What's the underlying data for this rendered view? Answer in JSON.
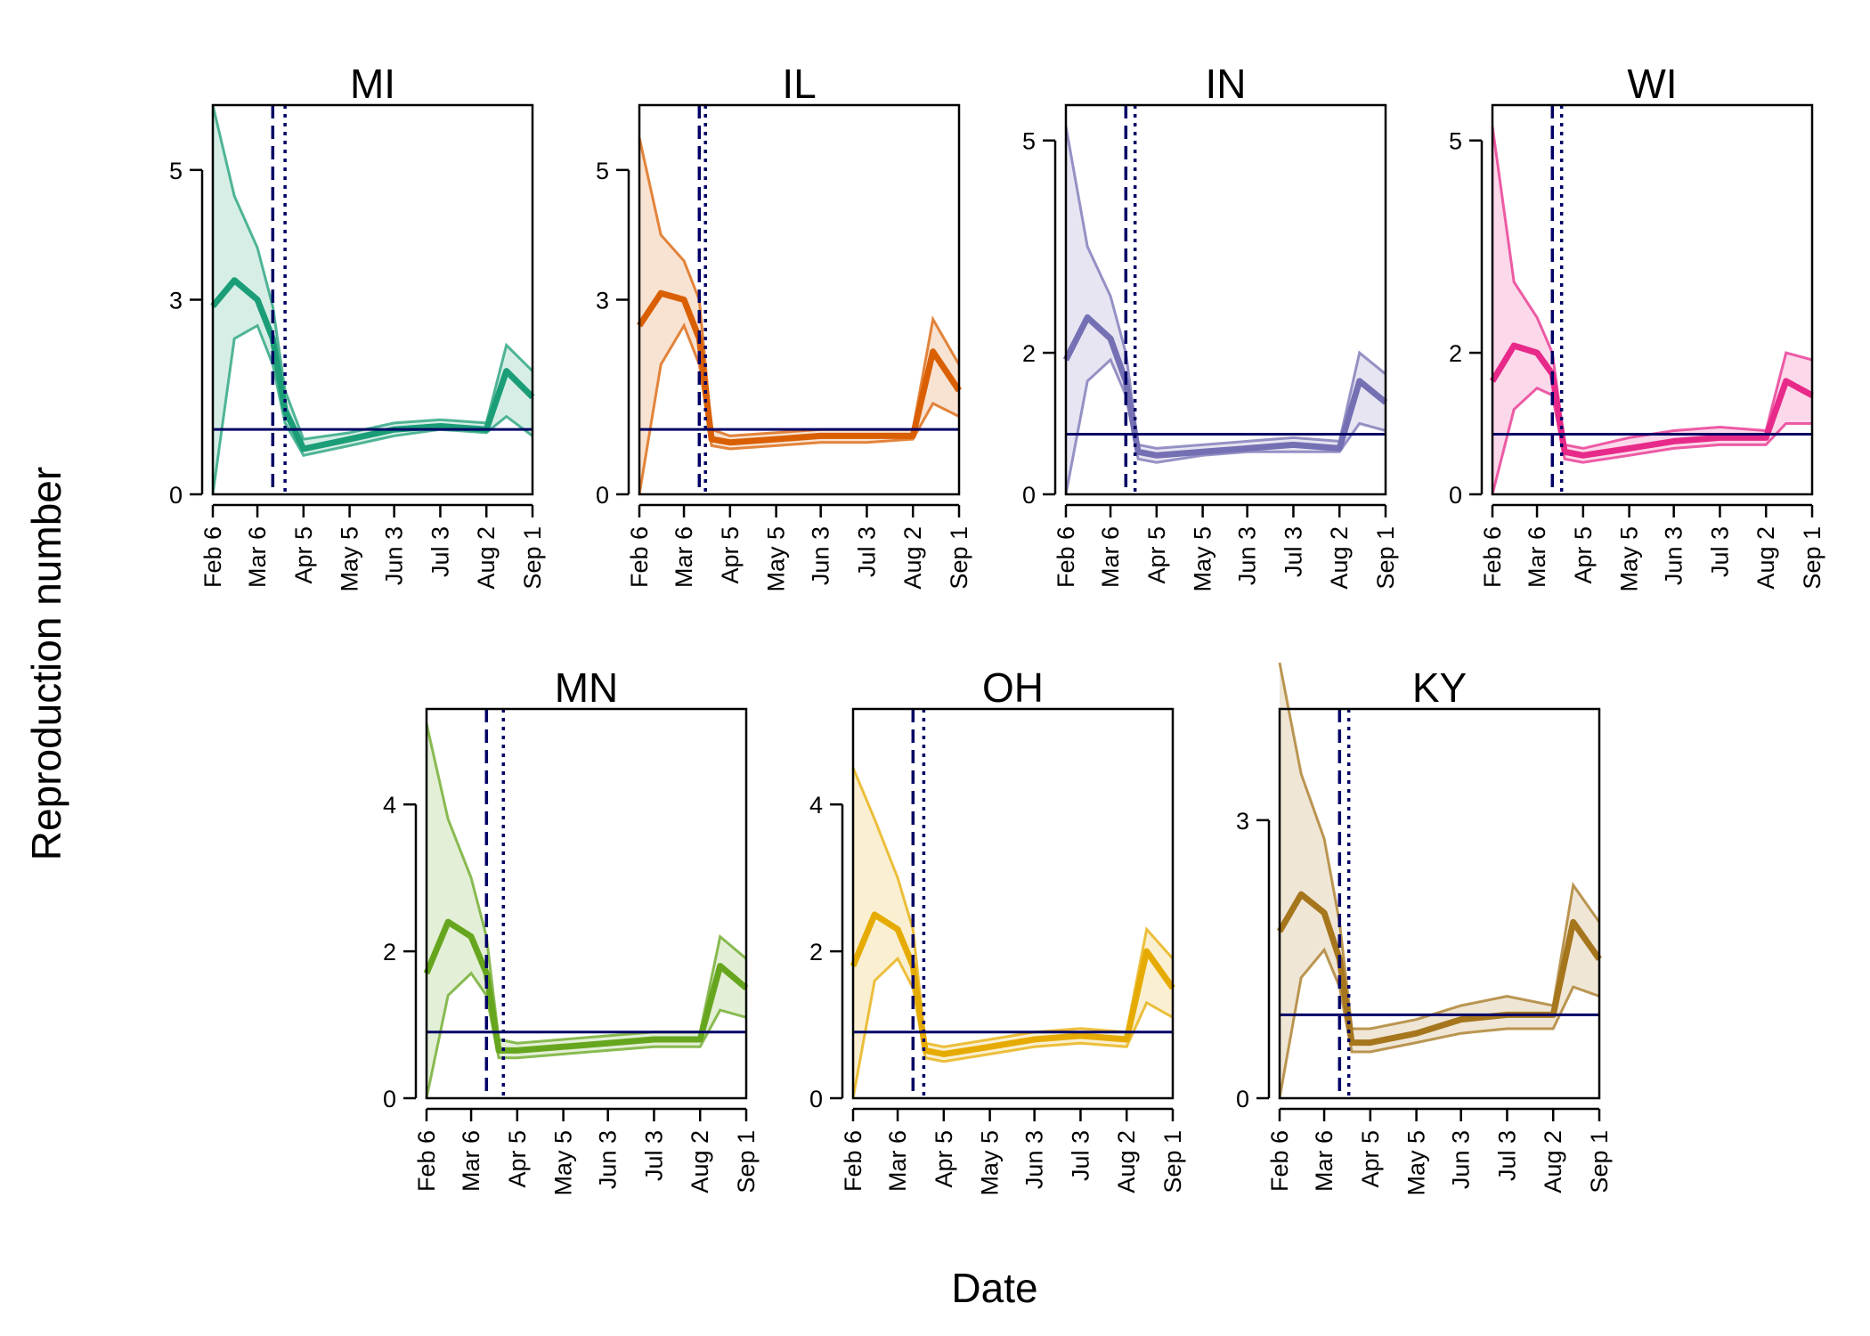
{
  "figure": {
    "ylabel": "Reproduction number",
    "xlabel": "Date"
  },
  "chart_data": [
    {
      "type": "line",
      "title": "MI",
      "color": "#1b9e77",
      "x_ticks": [
        "Feb 6",
        "Mar 6",
        "Apr 5",
        "May 5",
        "Jun 3",
        "Jul 3",
        "Aug 2",
        "Sep 1"
      ],
      "y_ticks": [
        0,
        3,
        5
      ],
      "ylim": [
        0,
        6
      ],
      "threshold": 1,
      "vline_dashed": "Mar 16",
      "vline_dotted": "Mar 24",
      "x": [
        "Feb 6",
        "Feb 20",
        "Mar 6",
        "Mar 16",
        "Mar 24",
        "Apr 5",
        "May 5",
        "Jun 3",
        "Jul 3",
        "Aug 2",
        "Aug 15",
        "Sep 1"
      ],
      "series": [
        {
          "role": "mean",
          "values": [
            2.9,
            3.3,
            3.0,
            2.4,
            1.3,
            0.7,
            0.85,
            1.0,
            1.05,
            1.0,
            1.9,
            1.5
          ]
        },
        {
          "role": "lower",
          "values": [
            0.0,
            2.4,
            2.6,
            2.0,
            1.1,
            0.6,
            0.75,
            0.9,
            1.0,
            0.95,
            1.2,
            0.9
          ]
        },
        {
          "role": "upper",
          "values": [
            6.0,
            4.6,
            3.8,
            2.9,
            1.6,
            0.85,
            0.95,
            1.1,
            1.15,
            1.1,
            2.3,
            1.9
          ]
        }
      ]
    },
    {
      "type": "line",
      "title": "IL",
      "color": "#d95f02",
      "x_ticks": [
        "Feb 6",
        "Mar 6",
        "Apr 5",
        "May 5",
        "Jun 3",
        "Jul 3",
        "Aug 2",
        "Sep 1"
      ],
      "y_ticks": [
        0,
        3,
        5
      ],
      "ylim": [
        0,
        6
      ],
      "threshold": 1,
      "vline_dashed": "Mar 16",
      "vline_dotted": "Mar 20",
      "x": [
        "Feb 6",
        "Feb 20",
        "Mar 6",
        "Mar 16",
        "Mar 24",
        "Apr 5",
        "May 5",
        "Jun 3",
        "Jul 3",
        "Aug 2",
        "Aug 15",
        "Sep 1"
      ],
      "series": [
        {
          "role": "mean",
          "values": [
            2.6,
            3.1,
            3.0,
            2.4,
            0.85,
            0.8,
            0.85,
            0.9,
            0.9,
            0.9,
            2.2,
            1.6
          ]
        },
        {
          "role": "lower",
          "values": [
            0.0,
            2.0,
            2.6,
            2.0,
            0.75,
            0.7,
            0.75,
            0.8,
            0.8,
            0.85,
            1.4,
            1.2
          ]
        },
        {
          "role": "upper",
          "values": [
            5.5,
            4.0,
            3.6,
            3.0,
            1.0,
            0.9,
            0.95,
            1.0,
            1.0,
            1.0,
            2.7,
            2.0
          ]
        }
      ]
    },
    {
      "type": "line",
      "title": "IN",
      "color": "#7570b3",
      "x_ticks": [
        "Feb 6",
        "Mar 6",
        "Apr 5",
        "May 5",
        "Jun 3",
        "Jul 3",
        "Aug 2",
        "Sep 1"
      ],
      "y_ticks": [
        0,
        2,
        5
      ],
      "ylim": [
        0,
        5.5
      ],
      "threshold": 0.85,
      "vline_dashed": "Mar 16",
      "vline_dotted": "Mar 22",
      "x": [
        "Feb 6",
        "Feb 20",
        "Mar 6",
        "Mar 16",
        "Mar 24",
        "Apr 5",
        "May 5",
        "Jun 3",
        "Jul 3",
        "Aug 2",
        "Aug 15",
        "Sep 1"
      ],
      "series": [
        {
          "role": "mean",
          "values": [
            1.9,
            2.5,
            2.2,
            1.6,
            0.6,
            0.55,
            0.6,
            0.65,
            0.7,
            0.65,
            1.6,
            1.3
          ]
        },
        {
          "role": "lower",
          "values": [
            0.0,
            1.6,
            1.9,
            1.4,
            0.5,
            0.45,
            0.55,
            0.6,
            0.6,
            0.6,
            1.0,
            0.9
          ]
        },
        {
          "role": "upper",
          "values": [
            5.2,
            3.5,
            2.8,
            2.0,
            0.7,
            0.65,
            0.7,
            0.75,
            0.8,
            0.75,
            2.0,
            1.7
          ]
        }
      ]
    },
    {
      "type": "line",
      "title": "WI",
      "color": "#e7298a",
      "x_ticks": [
        "Feb 6",
        "Mar 6",
        "Apr 5",
        "May 5",
        "Jun 3",
        "Jul 3",
        "Aug 2",
        "Sep 1"
      ],
      "y_ticks": [
        0,
        2,
        5
      ],
      "ylim": [
        0,
        5.5
      ],
      "threshold": 0.85,
      "vline_dashed": "Mar 16",
      "vline_dotted": "Mar 22",
      "x": [
        "Feb 6",
        "Feb 20",
        "Mar 6",
        "Mar 16",
        "Mar 24",
        "Apr 5",
        "May 5",
        "Jun 3",
        "Jul 3",
        "Aug 2",
        "Aug 15",
        "Sep 1"
      ],
      "series": [
        {
          "role": "mean",
          "values": [
            1.6,
            2.1,
            2.0,
            1.7,
            0.6,
            0.55,
            0.65,
            0.75,
            0.8,
            0.8,
            1.6,
            1.4
          ]
        },
        {
          "role": "lower",
          "values": [
            0.0,
            1.2,
            1.5,
            1.4,
            0.5,
            0.45,
            0.55,
            0.65,
            0.7,
            0.7,
            1.0,
            1.0
          ]
        },
        {
          "role": "upper",
          "values": [
            5.2,
            3.0,
            2.5,
            2.0,
            0.7,
            0.65,
            0.8,
            0.9,
            0.95,
            0.9,
            2.0,
            1.9
          ]
        }
      ]
    },
    {
      "type": "line",
      "title": "MN",
      "color": "#66a61e",
      "x_ticks": [
        "Feb 6",
        "Mar 6",
        "Apr 5",
        "May 5",
        "Jun 3",
        "Jul 3",
        "Aug 2",
        "Sep 1"
      ],
      "y_ticks": [
        0,
        2,
        4
      ],
      "ylim": [
        0,
        5.3
      ],
      "threshold": 0.9,
      "vline_dashed": "Mar 16",
      "vline_dotted": "Mar 27",
      "x": [
        "Feb 6",
        "Feb 20",
        "Mar 6",
        "Mar 16",
        "Mar 24",
        "Apr 5",
        "May 5",
        "Jun 3",
        "Jul 3",
        "Aug 2",
        "Aug 15",
        "Sep 1"
      ],
      "series": [
        {
          "role": "mean",
          "values": [
            1.7,
            2.4,
            2.2,
            1.7,
            0.65,
            0.65,
            0.7,
            0.75,
            0.8,
            0.8,
            1.8,
            1.5
          ]
        },
        {
          "role": "lower",
          "values": [
            0.0,
            1.4,
            1.7,
            1.4,
            0.55,
            0.55,
            0.6,
            0.65,
            0.7,
            0.7,
            1.2,
            1.1
          ]
        },
        {
          "role": "upper",
          "values": [
            5.1,
            3.8,
            3.0,
            2.2,
            0.8,
            0.75,
            0.8,
            0.85,
            0.9,
            0.9,
            2.2,
            1.9
          ]
        }
      ]
    },
    {
      "type": "line",
      "title": "OH",
      "color": "#e6ab02",
      "x_ticks": [
        "Feb 6",
        "Mar 6",
        "Apr 5",
        "May 5",
        "Jun 3",
        "Jul 3",
        "Aug 2",
        "Sep 1"
      ],
      "y_ticks": [
        0,
        2,
        4
      ],
      "ylim": [
        0,
        5.3
      ],
      "threshold": 0.9,
      "vline_dashed": "Mar 16",
      "vline_dotted": "Mar 23",
      "x": [
        "Feb 6",
        "Feb 20",
        "Mar 6",
        "Mar 16",
        "Mar 24",
        "Apr 5",
        "May 5",
        "Jun 3",
        "Jul 3",
        "Aug 2",
        "Aug 15",
        "Sep 1"
      ],
      "series": [
        {
          "role": "mean",
          "values": [
            1.8,
            2.5,
            2.3,
            1.8,
            0.65,
            0.6,
            0.7,
            0.8,
            0.85,
            0.8,
            2.0,
            1.5
          ]
        },
        {
          "role": "lower",
          "values": [
            0.0,
            1.6,
            1.9,
            1.5,
            0.55,
            0.5,
            0.6,
            0.7,
            0.75,
            0.7,
            1.3,
            1.1
          ]
        },
        {
          "role": "upper",
          "values": [
            4.5,
            3.8,
            3.0,
            2.3,
            0.75,
            0.7,
            0.8,
            0.9,
            0.95,
            0.9,
            2.3,
            1.9
          ]
        }
      ]
    },
    {
      "type": "line",
      "title": "KY",
      "color": "#a6761d",
      "x_ticks": [
        "Feb 6",
        "Mar 6",
        "Apr 5",
        "May 5",
        "Jun 3",
        "Jul 3",
        "Aug 2",
        "Sep 1"
      ],
      "y_ticks": [
        0,
        3
      ],
      "ylim": [
        0,
        4.2
      ],
      "threshold": 0.9,
      "vline_dashed": "Mar 16",
      "vline_dotted": "Mar 22",
      "x": [
        "Feb 6",
        "Feb 20",
        "Mar 6",
        "Mar 16",
        "Mar 24",
        "Apr 5",
        "May 5",
        "Jun 3",
        "Jul 3",
        "Aug 2",
        "Aug 15",
        "Sep 1"
      ],
      "series": [
        {
          "role": "mean",
          "values": [
            1.8,
            2.2,
            2.0,
            1.5,
            0.6,
            0.6,
            0.7,
            0.85,
            0.9,
            0.9,
            1.9,
            1.5
          ]
        },
        {
          "role": "lower",
          "values": [
            0.0,
            1.3,
            1.6,
            1.2,
            0.5,
            0.5,
            0.6,
            0.7,
            0.75,
            0.75,
            1.2,
            1.1
          ]
        },
        {
          "role": "upper",
          "values": [
            4.7,
            3.5,
            2.8,
            1.9,
            0.75,
            0.75,
            0.85,
            1.0,
            1.1,
            1.0,
            2.3,
            1.9
          ]
        }
      ]
    }
  ]
}
